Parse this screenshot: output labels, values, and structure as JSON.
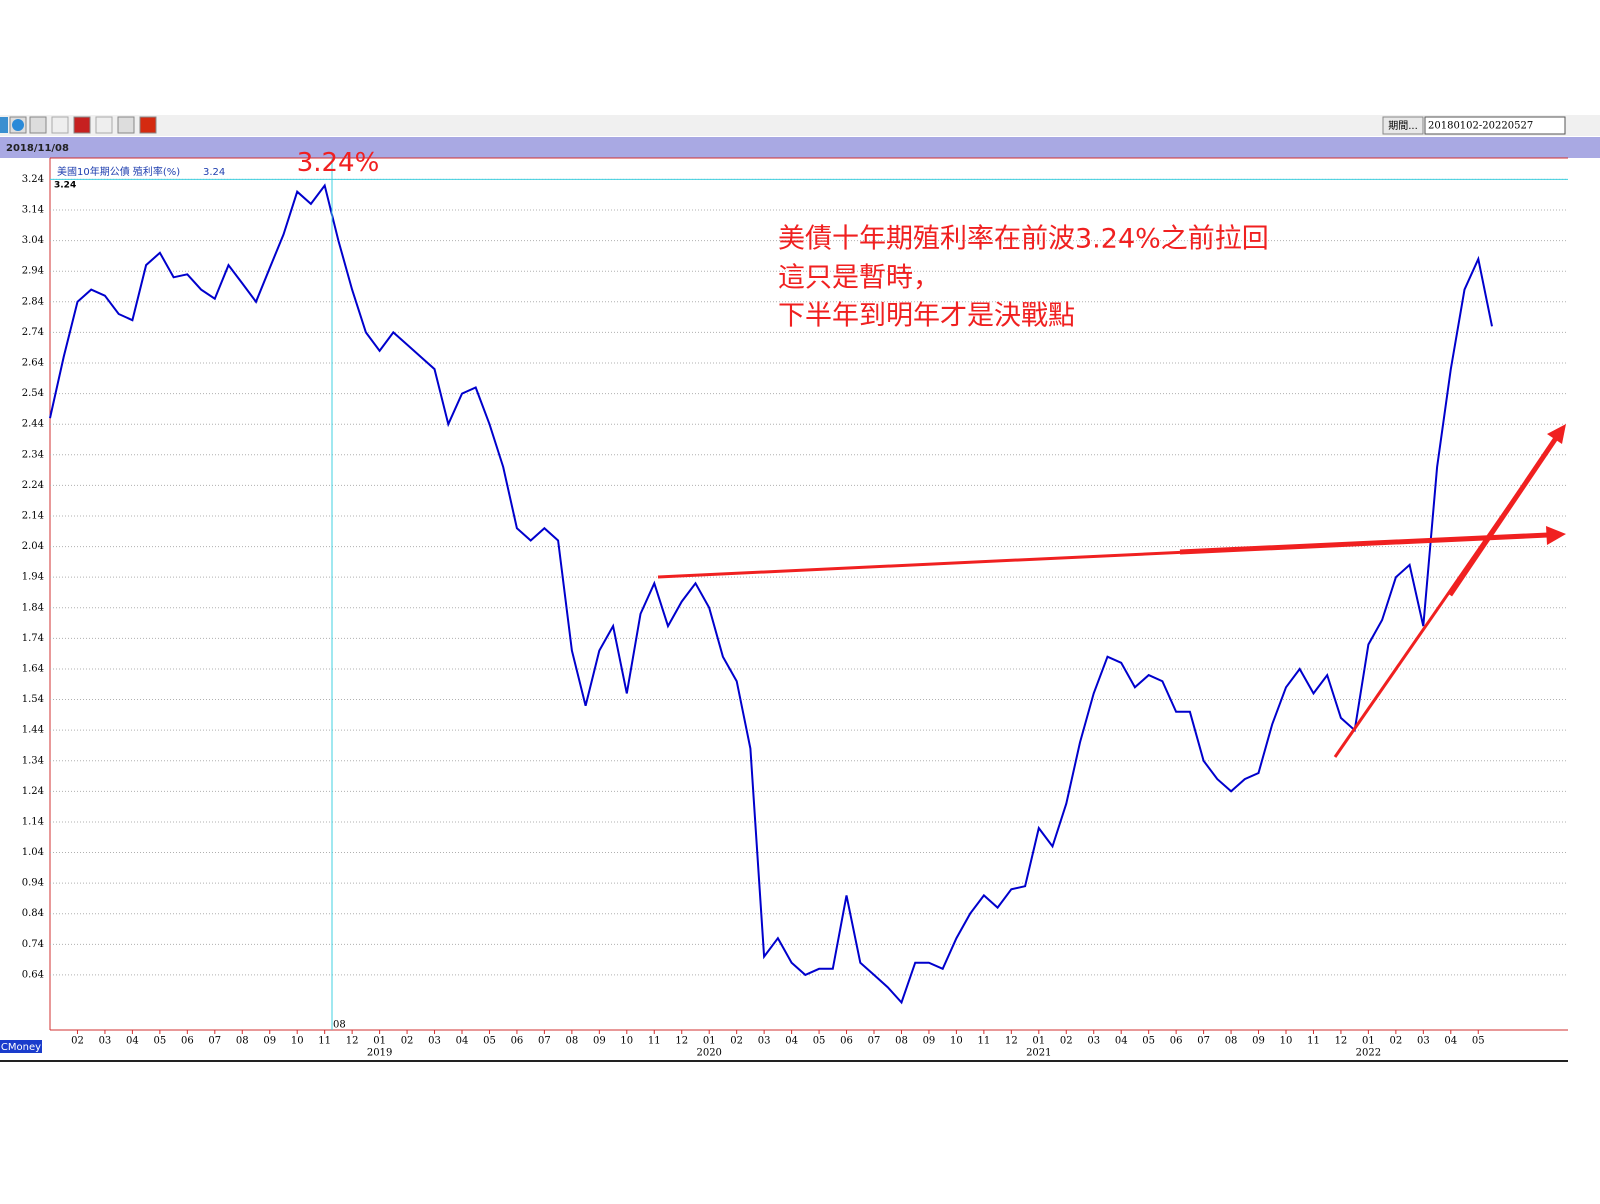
{
  "chart_data": {
    "type": "line",
    "series": [
      {
        "name": "美國10年期公債 殖利率(%)",
        "color": "#0000cc",
        "values": [
          2.46,
          2.66,
          2.84,
          2.88,
          2.86,
          2.8,
          2.78,
          2.96,
          3.0,
          2.92,
          2.93,
          2.88,
          2.85,
          2.96,
          2.9,
          2.84,
          2.95,
          3.06,
          3.2,
          3.16,
          3.22,
          3.04,
          2.88,
          2.74,
          2.68,
          2.74,
          2.7,
          2.66,
          2.62,
          2.44,
          2.54,
          2.56,
          2.44,
          2.3,
          2.1,
          2.06,
          2.1,
          2.06,
          1.7,
          1.52,
          1.7,
          1.78,
          1.56,
          1.82,
          1.92,
          1.78,
          1.86,
          1.92,
          1.84,
          1.68,
          1.6,
          1.38,
          0.7,
          0.76,
          0.68,
          0.64,
          0.66,
          0.66,
          0.9,
          0.68,
          0.64,
          0.6,
          0.55,
          0.68,
          0.68,
          0.66,
          0.76,
          0.84,
          0.9,
          0.86,
          0.92,
          0.93,
          1.12,
          1.06,
          1.2,
          1.4,
          1.56,
          1.68,
          1.66,
          1.58,
          1.62,
          1.6,
          1.5,
          1.5,
          1.34,
          1.28,
          1.24,
          1.28,
          1.3,
          1.46,
          1.58,
          1.64,
          1.56,
          1.62,
          1.48,
          1.44,
          1.72,
          1.8,
          1.94,
          1.98,
          1.78,
          2.3,
          2.62,
          2.88,
          2.98,
          2.76
        ]
      }
    ],
    "categories": [
      null,
      null,
      "02",
      null,
      "03",
      null,
      "04",
      null,
      "05",
      null,
      "06",
      null,
      "07",
      null,
      "08",
      null,
      "09",
      null,
      "10",
      null,
      "11",
      null,
      "12",
      null,
      "01",
      null,
      "02",
      null,
      "03",
      null,
      "04",
      null,
      "05",
      null,
      "06",
      null,
      "07",
      null,
      "08",
      null,
      "09",
      null,
      "10",
      null,
      "11",
      null,
      "12",
      null,
      "01",
      null,
      "02",
      null,
      "03",
      null,
      "04",
      null,
      "05",
      null,
      "06",
      null,
      "07",
      null,
      "08",
      null,
      "09",
      null,
      "10",
      null,
      "11",
      null,
      "12",
      null,
      "01",
      null,
      "02",
      null,
      "03",
      null,
      "04",
      null,
      "05",
      null,
      "06",
      null,
      "07",
      null,
      "08",
      null,
      "09",
      null,
      "10",
      null,
      "11",
      null,
      "12",
      null,
      "01",
      null,
      "02",
      null,
      "03",
      null,
      "04",
      null,
      "05",
      null
    ],
    "year_labels": [
      null,
      null,
      null,
      null,
      null,
      null,
      null,
      null,
      null,
      null,
      null,
      null,
      null,
      null,
      null,
      null,
      null,
      null,
      null,
      null,
      null,
      null,
      null,
      null,
      "2019",
      null,
      null,
      null,
      null,
      null,
      null,
      null,
      null,
      null,
      null,
      null,
      null,
      null,
      null,
      null,
      null,
      null,
      null,
      null,
      null,
      null,
      null,
      null,
      "2020",
      null,
      null,
      null,
      null,
      null,
      null,
      null,
      null,
      null,
      null,
      null,
      null,
      null,
      null,
      null,
      null,
      null,
      null,
      null,
      null,
      null,
      null,
      null,
      "2021",
      null,
      null,
      null,
      null,
      null,
      null,
      null,
      null,
      null,
      null,
      null,
      null,
      null,
      null,
      null,
      null,
      null,
      null,
      null,
      null,
      null,
      null,
      null,
      "2022",
      null,
      null,
      null,
      null,
      null,
      null,
      null,
      null,
      null
    ],
    "ylim": [
      0.46,
      3.31
    ],
    "yticks": [
      3.24,
      3.14,
      3.04,
      2.94,
      2.84,
      2.74,
      2.64,
      2.54,
      2.44,
      2.34,
      2.24,
      2.14,
      2.04,
      1.94,
      1.84,
      1.74,
      1.64,
      1.54,
      1.44,
      1.34,
      1.24,
      1.14,
      1.04,
      0.94,
      0.84,
      0.74,
      0.64
    ],
    "grid": true,
    "cursor": {
      "date_label": "2018/11/08",
      "day_label": "08",
      "value": 3.24
    },
    "peak": {
      "value": 3.24,
      "label": "3.24%"
    },
    "annotations": [
      "美債十年期殖利率在前波3.24%之前拉回",
      "這只是暫時，",
      "下半年到明年才是決戰點"
    ]
  },
  "ui": {
    "period_button": "期間...",
    "period_range": "20180102-20220527",
    "brand": "CMoney"
  }
}
